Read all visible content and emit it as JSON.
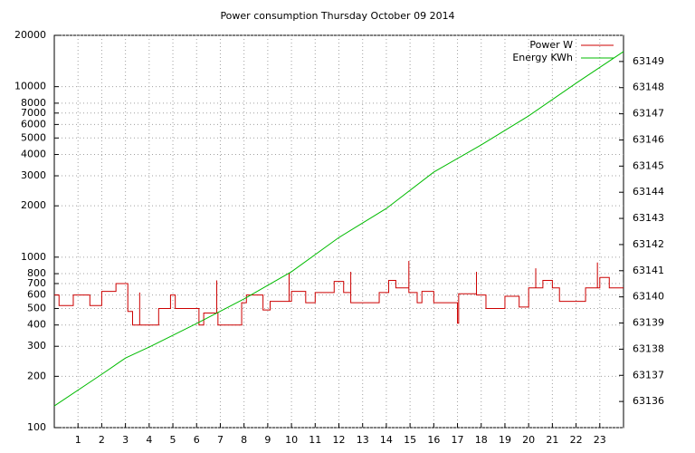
{
  "chart_data": {
    "type": "line",
    "title": "Power consumption Thursday October 09 2014",
    "xlim": [
      0,
      24
    ],
    "xticks": [
      1,
      2,
      3,
      4,
      5,
      6,
      7,
      8,
      9,
      10,
      11,
      12,
      13,
      14,
      15,
      16,
      17,
      18,
      19,
      20,
      21,
      22,
      23
    ],
    "ylim": [
      100,
      20000
    ],
    "log_y": true,
    "yticks": [
      100,
      200,
      300,
      400,
      500,
      600,
      700,
      800,
      1000,
      2000,
      3000,
      4000,
      5000,
      6000,
      7000,
      8000,
      10000,
      20000
    ],
    "y2lim": [
      63135,
      63150
    ],
    "y2ticks": [
      63136,
      63137,
      63138,
      63139,
      63140,
      63141,
      63142,
      63143,
      63144,
      63145,
      63146,
      63147,
      63148,
      63149
    ],
    "grid": true,
    "legend": "top-right",
    "series": [
      {
        "name": "Power W",
        "color": "#cc0000",
        "axis": "y",
        "x": [
          0,
          0.2,
          0.2,
          0.8,
          0.8,
          1.5,
          1.5,
          2,
          2,
          2.6,
          2.6,
          3.1,
          3.1,
          3.3,
          3.3,
          3.6,
          3.6,
          3.6,
          4.4,
          4.4,
          4.9,
          4.9,
          5.1,
          5.1,
          6.1,
          6.1,
          6.3,
          6.3,
          6.85,
          6.85,
          6.85,
          6.9,
          6.9,
          7.9,
          7.9,
          8.1,
          8.1,
          8.8,
          8.8,
          9.1,
          9.1,
          9.9,
          9.9,
          9.9,
          10,
          10,
          10.6,
          10.6,
          11,
          11,
          11.8,
          11.8,
          12.2,
          12.2,
          12.5,
          12.5,
          12.5,
          13.7,
          13.7,
          14.1,
          14.1,
          14.4,
          14.4,
          14.95,
          14.95,
          14.95,
          15.3,
          15.3,
          15.5,
          15.5,
          16,
          16,
          17,
          17,
          17.05,
          17.05,
          17.8,
          17.8,
          17.8,
          18.2,
          18.2,
          19,
          19,
          19.6,
          19.6,
          20,
          20,
          20.3,
          20.3,
          20.3,
          20.6,
          20.6,
          21,
          21,
          21.3,
          21.3,
          22.4,
          22.4,
          22.9,
          22.9,
          22.9,
          23,
          23,
          23.4,
          23.4,
          24
        ],
        "values": [
          600,
          600,
          520,
          520,
          600,
          600,
          520,
          520,
          630,
          630,
          700,
          700,
          480,
          480,
          400,
          400,
          620,
          400,
          400,
          500,
          500,
          600,
          600,
          500,
          500,
          400,
          400,
          470,
          470,
          730,
          470,
          470,
          400,
          400,
          540,
          540,
          600,
          600,
          490,
          490,
          550,
          550,
          810,
          550,
          550,
          630,
          630,
          540,
          540,
          620,
          620,
          720,
          720,
          620,
          620,
          820,
          540,
          540,
          620,
          620,
          730,
          730,
          660,
          660,
          950,
          620,
          620,
          540,
          540,
          630,
          630,
          540,
          540,
          410,
          410,
          610,
          610,
          820,
          600,
          600,
          500,
          500,
          590,
          590,
          510,
          510,
          660,
          660,
          860,
          660,
          660,
          730,
          730,
          660,
          660,
          550,
          550,
          660,
          660,
          930,
          660,
          660,
          760,
          760,
          660,
          660
        ]
      },
      {
        "name": "Energy KWh",
        "color": "#00bb00",
        "axis": "y2",
        "x": [
          0,
          2,
          3,
          4,
          6,
          8,
          10,
          12,
          14,
          16,
          18,
          20,
          22,
          24
        ],
        "values": [
          63135.83,
          63137.04,
          63137.66,
          63138.08,
          63138.98,
          63139.92,
          63140.96,
          63142.27,
          63143.38,
          63144.77,
          63145.81,
          63146.92,
          63148.17,
          63149.38
        ]
      }
    ]
  }
}
